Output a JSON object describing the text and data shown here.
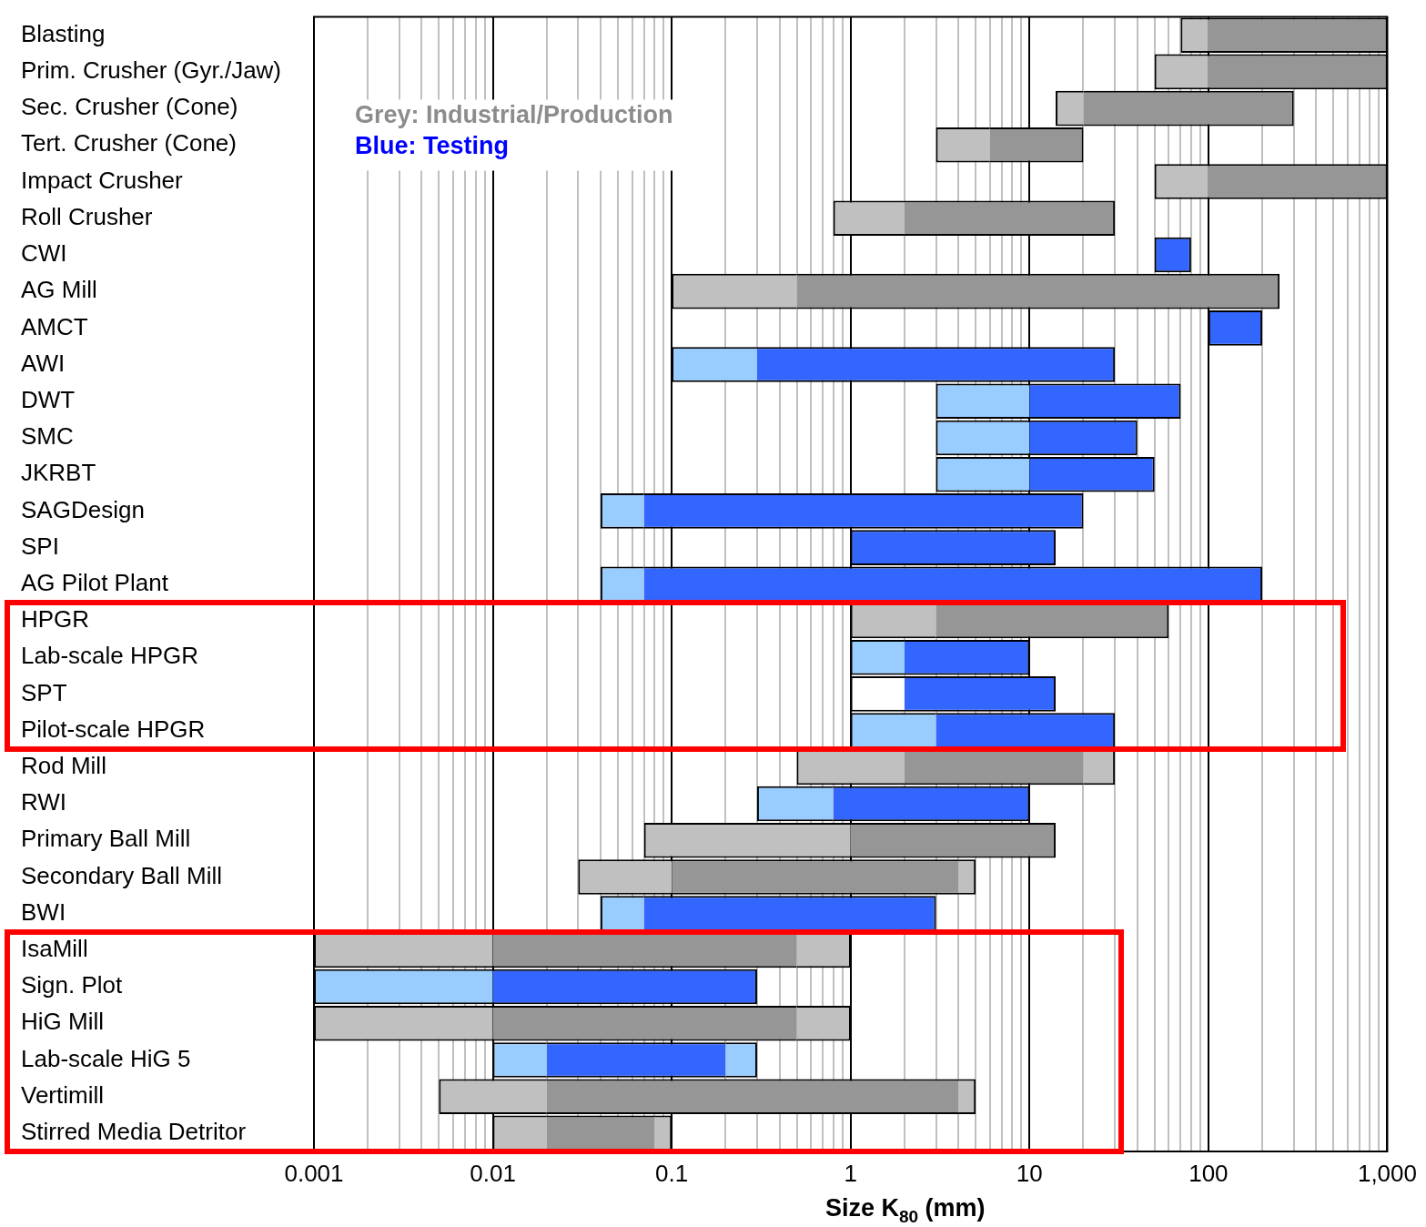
{
  "chart_data": {
    "type": "bar",
    "orientation": "horizontal",
    "log": "x",
    "grid": "x",
    "xlabel": "Size K$_{80}$ (mm)",
    "annotations": [
      "Grey: Industrial/Production",
      "Blue: Testing"
    ],
    "categories": [
      "Blasting",
      "Prim. Crusher (Gyr./Jaw)",
      "Sec. Crusher (Cone)",
      "Tert. Crusher (Cone)",
      "Impact Crusher",
      "Roll Crusher",
      "CWI",
      "AG Mill",
      "AMCT",
      "AWI",
      "DWT",
      "SMC",
      "JKRBT",
      "SAGDesign",
      "SPI",
      "AG Pilot Plant",
      "HPGR",
      "Lab-scale HPGR",
      "SPT",
      "Pilot-scale HPGR",
      "Rod Mill",
      "RWI",
      "Primary Ball Mill",
      "Secondary Ball Mill",
      "BWI",
      "IsaMill",
      "Sign. Plot",
      "HiG Mill",
      "Lab-scale HiG 5",
      "Vertimill",
      "Stirred Media Detritor"
    ],
    "xlim": [
      0.001,
      1000
    ],
    "xticks": [
      0.001,
      {
        "value": 0.002,
        "label": null
      },
      {
        "value": 0.003,
        "label": null
      },
      {
        "value": 0.004,
        "label": null
      },
      {
        "value": 0.005,
        "label": null
      },
      {
        "value": 0.006,
        "label": null
      },
      {
        "value": 0.007,
        "label": null
      },
      {
        "value": 0.008,
        "label": null
      },
      {
        "value": 0.009,
        "label": null
      },
      0.01,
      {
        "value": 0.02,
        "label": null
      },
      {
        "value": 0.03,
        "label": null
      },
      {
        "value": 0.04,
        "label": null
      },
      {
        "value": 0.05,
        "label": null
      },
      {
        "value": 0.06,
        "label": null
      },
      {
        "value": 0.07,
        "label": null
      },
      {
        "value": 0.08,
        "label": null
      },
      {
        "value": 0.09,
        "label": null
      },
      0.1,
      {
        "value": 0.2,
        "label": null
      },
      {
        "value": 0.3,
        "label": null
      },
      {
        "value": 0.4,
        "label": null
      },
      {
        "value": 0.5,
        "label": null
      },
      {
        "value": 0.6,
        "label": null
      },
      {
        "value": 0.7,
        "label": null
      },
      {
        "value": 0.8,
        "label": null
      },
      {
        "value": 0.9,
        "label": null
      },
      1,
      {
        "value": 2,
        "label": null
      },
      {
        "value": 3,
        "label": null
      },
      {
        "value": 4,
        "label": null
      },
      {
        "value": 5,
        "label": null
      },
      {
        "value": 6,
        "label": null
      },
      {
        "value": 7,
        "label": null
      },
      {
        "value": 8,
        "label": null
      },
      {
        "value": 9,
        "label": null
      },
      10,
      {
        "value": 20,
        "label": null
      },
      {
        "value": 30,
        "label": null
      },
      {
        "value": 40,
        "label": null
      },
      {
        "value": 50,
        "label": null
      },
      {
        "value": 60,
        "label": null
      },
      {
        "value": 70,
        "label": null
      },
      {
        "value": 80,
        "label": null
      },
      {
        "value": 90,
        "label": null
      },
      100,
      {
        "value": 200,
        "label": null
      },
      {
        "value": 300,
        "label": null
      },
      {
        "value": 400,
        "label": null
      },
      {
        "value": 500,
        "label": null
      },
      {
        "value": 600,
        "label": null
      },
      {
        "value": 700,
        "label": null
      },
      {
        "value": 800,
        "label": null
      },
      {
        "value": 900,
        "label": null
      },
      {
        "value": 1000,
        "label": "1,000"
      }
    ],
    "series": [
      {
        "base": [
          70,
          50,
          14,
          3,
          50,
          0.8,
          null,
          0.1,
          null,
          0.1,
          3,
          3,
          3,
          0.04,
          null,
          0.04,
          1,
          1,
          1,
          1,
          0.5,
          0.3,
          0.07,
          0.03,
          0.04,
          0.001,
          0.001,
          0.001,
          0.01,
          0.005,
          0.01
        ],
        "values": [
          30,
          50,
          6,
          3,
          50,
          1.2,
          null,
          0.4,
          null,
          0.2,
          7,
          7,
          7,
          0.03,
          null,
          0.03,
          2,
          1,
          1,
          2,
          1.5,
          0.5,
          0.93,
          0.07,
          0.03,
          0.009,
          0.009,
          0.009,
          0.01,
          0.015,
          0.01
        ],
        "colors": [
          "#c0c0c0",
          "#c0c0c0",
          "#c0c0c0",
          "#c0c0c0",
          "#c0c0c0",
          "#c0c0c0",
          "#c0c0c0",
          "#c0c0c0",
          "#c0c0c0",
          "#99ccff",
          "#99ccff",
          "#99ccff",
          "#99ccff",
          "#99ccff",
          "#99ccff",
          "#99ccff",
          "#c0c0c0",
          "#99ccff",
          "#ffffff",
          "#99ccff",
          "#c0c0c0",
          "#99ccff",
          "#c0c0c0",
          "#c0c0c0",
          "#99ccff",
          "#c0c0c0",
          "#99ccff",
          "#c0c0c0",
          "#99ccff",
          "#c0c0c0",
          "#c0c0c0"
        ]
      },
      {
        "base": [
          100,
          100,
          20,
          6,
          100,
          2,
          50,
          0.5,
          100,
          0.3,
          10,
          10,
          10,
          0.07,
          1,
          0.07,
          3,
          2,
          2,
          3,
          2,
          0.8,
          1,
          0.1,
          0.07,
          0.01,
          0.01,
          0.01,
          0.02,
          0.02,
          0.02
        ],
        "values": [
          900,
          900,
          280,
          14,
          900,
          28,
          30,
          249.5,
          100,
          29.7,
          60,
          30,
          40,
          19.93,
          13,
          199.93,
          57,
          8,
          12,
          27,
          18,
          9.2,
          13,
          3.9,
          2.93,
          0.49,
          0.29,
          0.49,
          0.18,
          3.98,
          0.06
        ],
        "colors": [
          "#969696",
          "#969696",
          "#969696",
          "#969696",
          "#969696",
          "#969696",
          "#3366ff",
          "#969696",
          "#3366ff",
          "#3366ff",
          "#3366ff",
          "#3366ff",
          "#3366ff",
          "#3366ff",
          "#3366ff",
          "#3366ff",
          "#969696",
          "#3366ff",
          "#3366ff",
          "#3366ff",
          "#969696",
          "#3366ff",
          "#969696",
          "#969696",
          "#3366ff",
          "#969696",
          "#3366ff",
          "#969696",
          "#3366ff",
          "#969696",
          "#969696"
        ]
      },
      {
        "base": [
          null,
          null,
          null,
          null,
          null,
          null,
          null,
          null,
          null,
          null,
          null,
          null,
          null,
          null,
          null,
          null,
          null,
          null,
          null,
          null,
          20,
          null,
          null,
          4,
          null,
          0.5,
          null,
          0.5,
          0.2,
          4,
          0.08
        ],
        "values": [
          null,
          null,
          null,
          null,
          null,
          null,
          null,
          null,
          null,
          null,
          null,
          null,
          null,
          null,
          null,
          null,
          null,
          null,
          null,
          null,
          10,
          null,
          null,
          1,
          null,
          0.5,
          null,
          0.5,
          0.1,
          1,
          0.02
        ],
        "colors": [
          "#c0c0c0",
          "#c0c0c0",
          "#c0c0c0",
          "#c0c0c0",
          "#c0c0c0",
          "#c0c0c0",
          "#c0c0c0",
          "#c0c0c0",
          "#c0c0c0",
          "#99ccff",
          "#99ccff",
          "#99ccff",
          "#99ccff",
          "#99ccff",
          "#99ccff",
          "#99ccff",
          "#c0c0c0",
          "#99ccff",
          "#ffffff",
          "#99ccff",
          "#c0c0c0",
          "#99ccff",
          "#c0c0c0",
          "#c0c0c0",
          "#99ccff",
          "#c0c0c0",
          "#99ccff",
          "#c0c0c0",
          "#99ccff",
          "#c0c0c0",
          "#c0c0c0"
        ]
      }
    ]
  }
}
